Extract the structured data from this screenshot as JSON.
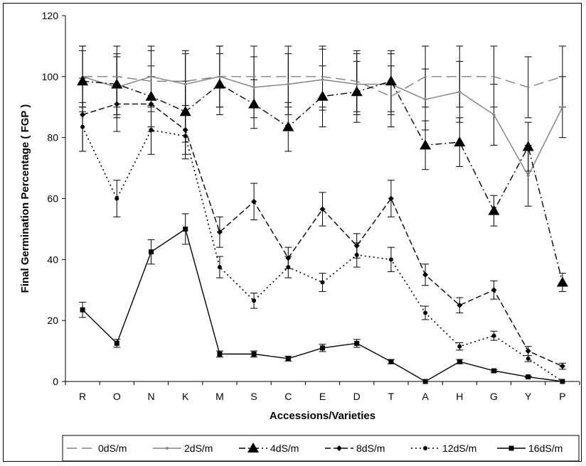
{
  "chart_data": {
    "type": "line",
    "title": "",
    "xlabel": "Accessions/Varieties",
    "ylabel": "Final Germination  Percentage ( FGP )",
    "ylim": [
      0,
      120
    ],
    "yticks": [
      0,
      20,
      40,
      60,
      80,
      100,
      120
    ],
    "grid": false,
    "legend_position": "bottom",
    "categories": [
      "R",
      "O",
      "N",
      "K",
      "M",
      "S",
      "C",
      "E",
      "D",
      "T",
      "A",
      "H",
      "G",
      "Y",
      "P"
    ],
    "series": [
      {
        "name": "0dS/m",
        "line_style": "long-dash",
        "marker": "none",
        "color": "#808080",
        "values": [
          100,
          100,
          98.5,
          98.5,
          100,
          100,
          100,
          100,
          98.5,
          93.5,
          100,
          100,
          100,
          96.5,
          100
        ],
        "error": [
          10,
          10,
          10,
          10,
          10,
          10,
          10,
          10,
          10,
          10,
          10,
          10,
          10,
          10,
          10
        ]
      },
      {
        "name": "2dS/m",
        "line_style": "solid",
        "marker": "small-diamond",
        "color": "#808080",
        "values": [
          100,
          96.5,
          100,
          97.5,
          100,
          96.5,
          97.5,
          99,
          97.5,
          97.5,
          92.5,
          95,
          87.5,
          67.5,
          90
        ],
        "error": [
          10,
          10,
          10,
          10,
          10,
          10,
          10,
          10,
          10,
          10,
          10,
          10,
          10,
          10,
          10
        ]
      },
      {
        "name": "4dS/m",
        "line_style": "dash-dot",
        "marker": "triangle",
        "color": "#000000",
        "values": [
          98.5,
          97.5,
          93.5,
          88.5,
          97.5,
          91,
          83.5,
          93.5,
          95,
          98.5,
          77.5,
          78.5,
          56,
          77,
          32.5
        ],
        "error": [
          10,
          10,
          10,
          10,
          10,
          8,
          8,
          10,
          10,
          10,
          8,
          8,
          5,
          8,
          3
        ]
      },
      {
        "name": "8dS/m",
        "line_style": "dash",
        "marker": "diamond",
        "color": "#000000",
        "values": [
          87.5,
          91,
          91,
          82.5,
          49,
          59,
          40.5,
          56.5,
          44.5,
          60,
          35,
          25,
          30,
          10,
          5
        ],
        "error": [
          12,
          9,
          9,
          8,
          5,
          6,
          3.5,
          5.5,
          4,
          6,
          3.5,
          2.5,
          3,
          1.5,
          1
        ]
      },
      {
        "name": "12dS/m",
        "line_style": "dotted",
        "marker": "dot",
        "color": "#000000",
        "values": [
          83.5,
          60,
          82.5,
          80.5,
          37.5,
          26.5,
          37.5,
          32.5,
          41.5,
          40,
          22.5,
          11.5,
          15,
          7.5,
          0
        ],
        "error": [
          8,
          6,
          8,
          7.5,
          3.5,
          2.5,
          3.5,
          3,
          4,
          4,
          2.2,
          1.2,
          1.5,
          1,
          0
        ]
      },
      {
        "name": "16dS/m",
        "line_style": "solid",
        "marker": "square",
        "color": "#000000",
        "values": [
          23.5,
          12.5,
          42.5,
          50,
          9,
          9,
          7.5,
          11,
          12.5,
          6.5,
          0,
          6.5,
          3.5,
          1.5,
          0
        ],
        "error": [
          2.5,
          1.3,
          4,
          5,
          1,
          1,
          0.8,
          1.2,
          1.3,
          0.7,
          0,
          0.7,
          0.4,
          0.2,
          0
        ]
      }
    ]
  }
}
